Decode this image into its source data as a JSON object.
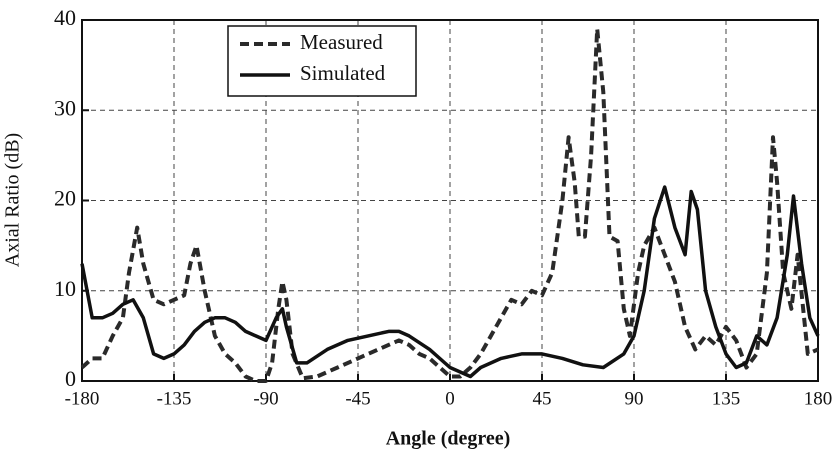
{
  "chart_data": {
    "type": "line",
    "xlabel": "Angle (degree)",
    "ylabel": "Axial Ratio (dB)",
    "xlim": [
      -180,
      180
    ],
    "xticks": [
      -180,
      -135,
      -90,
      -45,
      0,
      45,
      90,
      135,
      180
    ],
    "ylim": [
      0,
      40
    ],
    "yticks": [
      0,
      10,
      20,
      30,
      40
    ],
    "grid": true,
    "legend": "upper center",
    "series": [
      {
        "name": "Measured",
        "color": "#2a2a2a",
        "dash": true,
        "x": [
          -180,
          -175,
          -170,
          -165,
          -160,
          -157,
          -153,
          -150,
          -145,
          -140,
          -135,
          -130,
          -127,
          -124,
          -120,
          -115,
          -110,
          -105,
          -100,
          -95,
          -90,
          -87,
          -84,
          -82,
          -80,
          -77,
          -72,
          -65,
          -55,
          -45,
          -35,
          -25,
          -20,
          -15,
          -10,
          -5,
          0,
          5,
          10,
          15,
          20,
          25,
          30,
          35,
          40,
          45,
          50,
          55,
          58,
          61,
          63,
          66,
          69,
          72,
          75,
          78,
          82,
          85,
          88,
          92,
          95,
          100,
          105,
          110,
          115,
          120,
          125,
          130,
          135,
          140,
          145,
          150,
          155,
          158,
          160,
          163,
          167,
          170,
          175,
          180
        ],
        "values": [
          1.5,
          2.5,
          2.5,
          5,
          7,
          12,
          17,
          13,
          9,
          8.5,
          9,
          9.5,
          13,
          15,
          10,
          5,
          3,
          2,
          0.5,
          0,
          0,
          2,
          8,
          11,
          9,
          3,
          0.3,
          0.5,
          1.5,
          2.5,
          3.5,
          4.5,
          4,
          3,
          2.5,
          1.5,
          0.5,
          0.5,
          1.5,
          3,
          5,
          7,
          9,
          8.5,
          10,
          9.5,
          12,
          20,
          27,
          22,
          16,
          16,
          25,
          39,
          32,
          16,
          15.5,
          8,
          5,
          12,
          15,
          17,
          14,
          11,
          6,
          3.5,
          5,
          4,
          6,
          4.5,
          1.5,
          3,
          12,
          27,
          22,
          12,
          8,
          14,
          3,
          3.5
        ]
      },
      {
        "name": "Simulated",
        "color": "#111111",
        "dash": false,
        "x": [
          -180,
          -175,
          -170,
          -165,
          -160,
          -155,
          -150,
          -145,
          -140,
          -135,
          -130,
          -125,
          -120,
          -115,
          -110,
          -105,
          -100,
          -95,
          -90,
          -85,
          -82,
          -80,
          -75,
          -70,
          -60,
          -50,
          -40,
          -30,
          -25,
          -20,
          -10,
          0,
          5,
          10,
          15,
          25,
          35,
          45,
          55,
          65,
          75,
          85,
          90,
          95,
          100,
          105,
          110,
          115,
          118,
          121,
          125,
          130,
          135,
          140,
          145,
          150,
          155,
          160,
          165,
          168,
          172,
          176,
          180
        ],
        "values": [
          13,
          7,
          7,
          7.5,
          8.5,
          9,
          7,
          3,
          2.5,
          3,
          4,
          5.5,
          6.5,
          7,
          7,
          6.5,
          5.5,
          5,
          4.5,
          7,
          8,
          6,
          2,
          2,
          3.5,
          4.5,
          5,
          5.5,
          5.5,
          5,
          3.5,
          1.5,
          1,
          0.5,
          1.5,
          2.5,
          3,
          3,
          2.5,
          1.8,
          1.5,
          3,
          5,
          10,
          18,
          21.5,
          17,
          14,
          21,
          19,
          10,
          6,
          3,
          1.5,
          2,
          5,
          4,
          7,
          14,
          20.5,
          13,
          7,
          5
        ]
      }
    ]
  }
}
